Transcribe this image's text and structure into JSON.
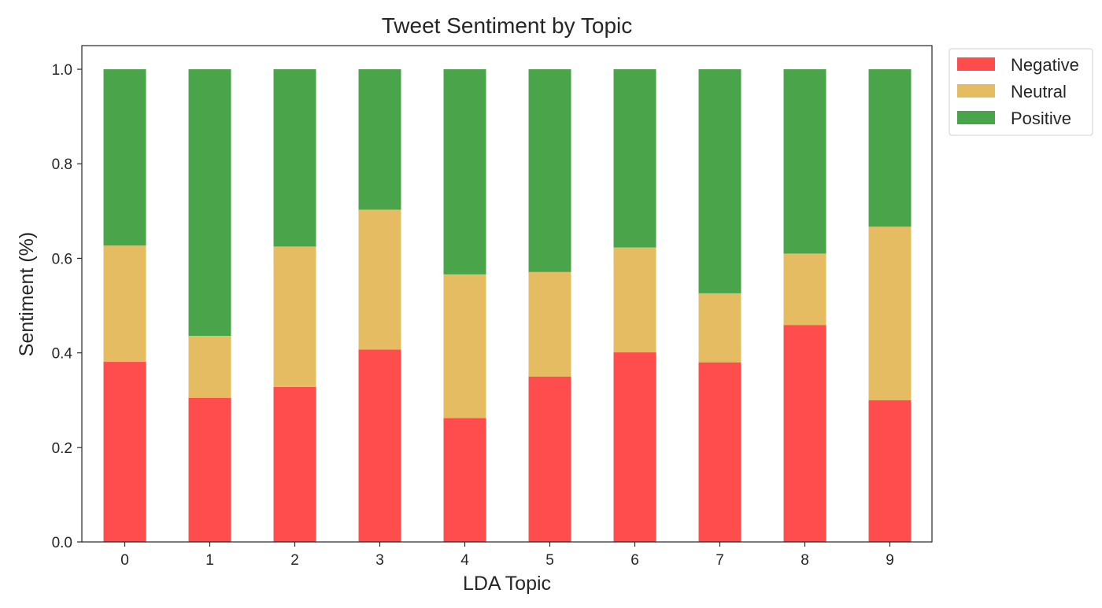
{
  "chart_data": {
    "type": "bar",
    "stacked": true,
    "title": "Tweet Sentiment by Topic",
    "xlabel": "LDA Topic",
    "ylabel": "Sentiment (%)",
    "categories": [
      "0",
      "1",
      "2",
      "3",
      "4",
      "5",
      "6",
      "7",
      "8",
      "9"
    ],
    "ylim": [
      0,
      1.05
    ],
    "yticks": [
      "0.0",
      "0.2",
      "0.4",
      "0.6",
      "0.8",
      "1.0"
    ],
    "ytick_values": [
      0,
      0.2,
      0.4,
      0.6,
      0.8,
      1.0
    ],
    "grid": false,
    "legend_position": "upper-right-outside",
    "series": [
      {
        "name": "Negative",
        "color": "#ff4d4d",
        "values": [
          0.381,
          0.305,
          0.328,
          0.407,
          0.262,
          0.35,
          0.401,
          0.38,
          0.459,
          0.3
        ]
      },
      {
        "name": "Neutral",
        "color": "#e5bc62",
        "values": [
          0.246,
          0.131,
          0.297,
          0.296,
          0.304,
          0.221,
          0.222,
          0.146,
          0.151,
          0.367
        ]
      },
      {
        "name": "Positive",
        "color": "#4aa54a",
        "values": [
          0.373,
          0.564,
          0.375,
          0.297,
          0.434,
          0.429,
          0.377,
          0.474,
          0.39,
          0.333
        ]
      }
    ]
  }
}
